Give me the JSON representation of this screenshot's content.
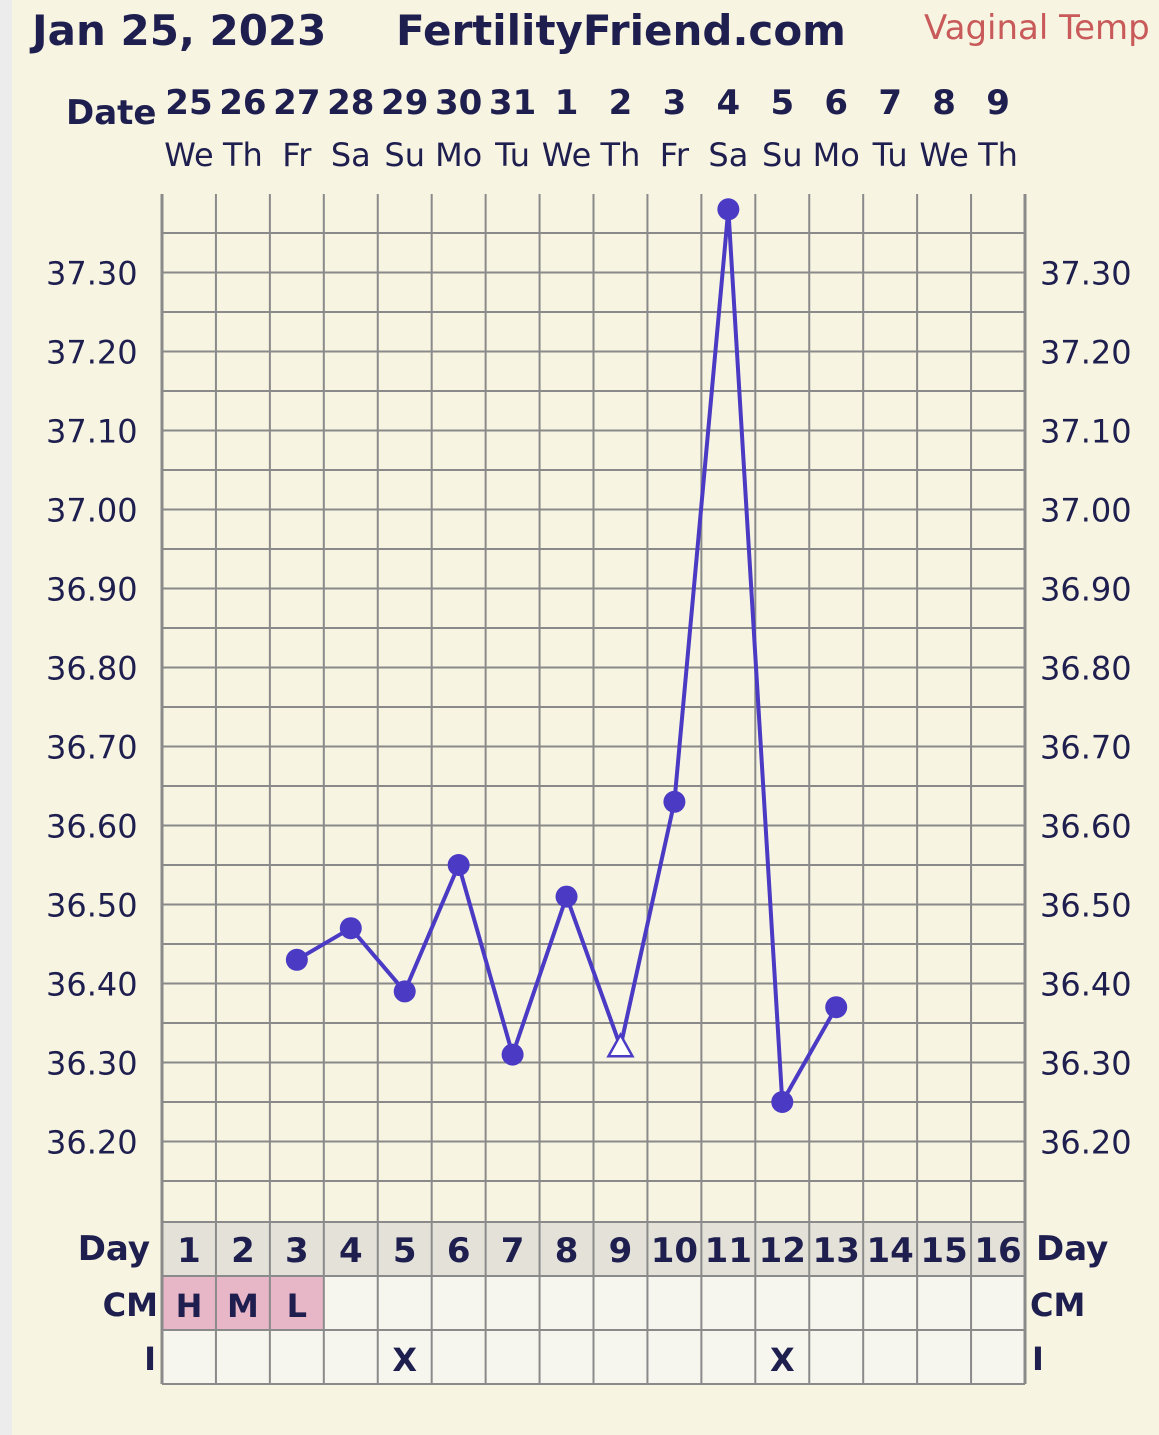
{
  "header": {
    "date": "Jan 25, 2023",
    "site": "FertilityFriend.com",
    "temp_type": "Vaginal Temp"
  },
  "row_labels": {
    "date": "Date",
    "day": "Day",
    "cm": "CM",
    "intercourse": "I"
  },
  "colors": {
    "background": "#f7f4e2",
    "grid": "#8a8a8a",
    "line": "#4a3ac4",
    "text": "#1f1f4f",
    "cm_highlight": "#e8b7c7",
    "day_row": "#e4e2d8",
    "temp_type": "#c85a5a"
  },
  "chart_data": {
    "type": "line",
    "x": [
      {
        "date": "25",
        "dow": "We",
        "day": "1"
      },
      {
        "date": "26",
        "dow": "Th",
        "day": "2"
      },
      {
        "date": "27",
        "dow": "Fr",
        "day": "3"
      },
      {
        "date": "28",
        "dow": "Sa",
        "day": "4"
      },
      {
        "date": "29",
        "dow": "Su",
        "day": "5"
      },
      {
        "date": "30",
        "dow": "Mo",
        "day": "6"
      },
      {
        "date": "31",
        "dow": "Tu",
        "day": "7"
      },
      {
        "date": "1",
        "dow": "We",
        "day": "8"
      },
      {
        "date": "2",
        "dow": "Th",
        "day": "9"
      },
      {
        "date": "3",
        "dow": "Fr",
        "day": "10"
      },
      {
        "date": "4",
        "dow": "Sa",
        "day": "11"
      },
      {
        "date": "5",
        "dow": "Su",
        "day": "12"
      },
      {
        "date": "6",
        "dow": "Mo",
        "day": "13"
      },
      {
        "date": "7",
        "dow": "Tu",
        "day": "14"
      },
      {
        "date": "8",
        "dow": "We",
        "day": "15"
      },
      {
        "date": "9",
        "dow": "Th",
        "day": "16"
      }
    ],
    "temperatures": [
      null,
      null,
      36.43,
      36.47,
      36.39,
      36.55,
      36.31,
      36.51,
      36.32,
      36.63,
      37.38,
      36.25,
      36.37,
      null,
      null,
      null
    ],
    "markers": [
      "",
      "",
      "dot",
      "dot",
      "dot",
      "dot",
      "dot",
      "dot",
      "open-triangle",
      "dot",
      "dot",
      "dot",
      "dot",
      "",
      "",
      ""
    ],
    "y_ticks": [
      "36.20",
      "36.30",
      "36.40",
      "36.50",
      "36.60",
      "36.70",
      "36.80",
      "36.90",
      "37.00",
      "37.10",
      "37.20",
      "37.30"
    ],
    "ylim": [
      36.1,
      37.4
    ],
    "grid": true,
    "cm": [
      "H",
      "M",
      "L",
      "",
      "",
      "",
      "",
      "",
      "",
      "",
      "",
      "",
      "",
      "",
      "",
      ""
    ],
    "intercourse": [
      "",
      "",
      "",
      "",
      "X",
      "",
      "",
      "",
      "",
      "",
      "",
      "X",
      "",
      "",
      "",
      ""
    ]
  }
}
